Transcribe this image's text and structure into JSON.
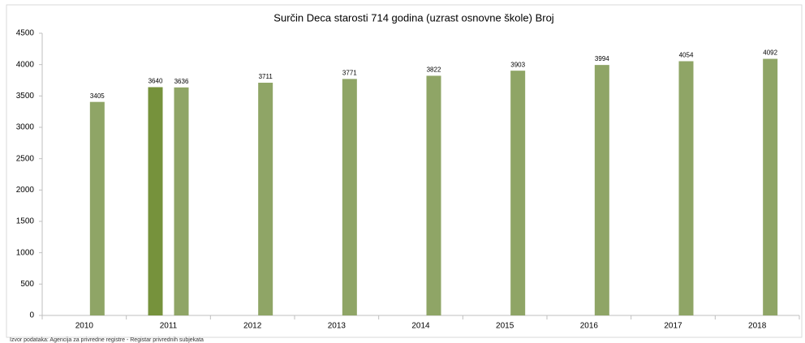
{
  "chart_data": {
    "type": "bar",
    "title": "Surčin Deca starosti 714 godina (uzrast osnovne škole) Broj",
    "source": "Izvor podataka: Agencija za privredne registre - Registar privrednih subjekata",
    "categories": [
      "2010",
      "2011",
      "2012",
      "2013",
      "2014",
      "2015",
      "2016",
      "2017",
      "2018"
    ],
    "series": [
      {
        "color": "#76923c",
        "values": [
          null,
          3640,
          null,
          null,
          null,
          null,
          null,
          null,
          null
        ]
      },
      {
        "color": "#8fa566",
        "values": [
          3405,
          3636,
          3711,
          3771,
          3822,
          3903,
          3994,
          4054,
          4092
        ]
      }
    ],
    "ylim": [
      0,
      4500
    ],
    "yticks": [
      0,
      500,
      1000,
      1500,
      2000,
      2500,
      3000,
      3500,
      4000,
      4500
    ],
    "grid": false
  }
}
